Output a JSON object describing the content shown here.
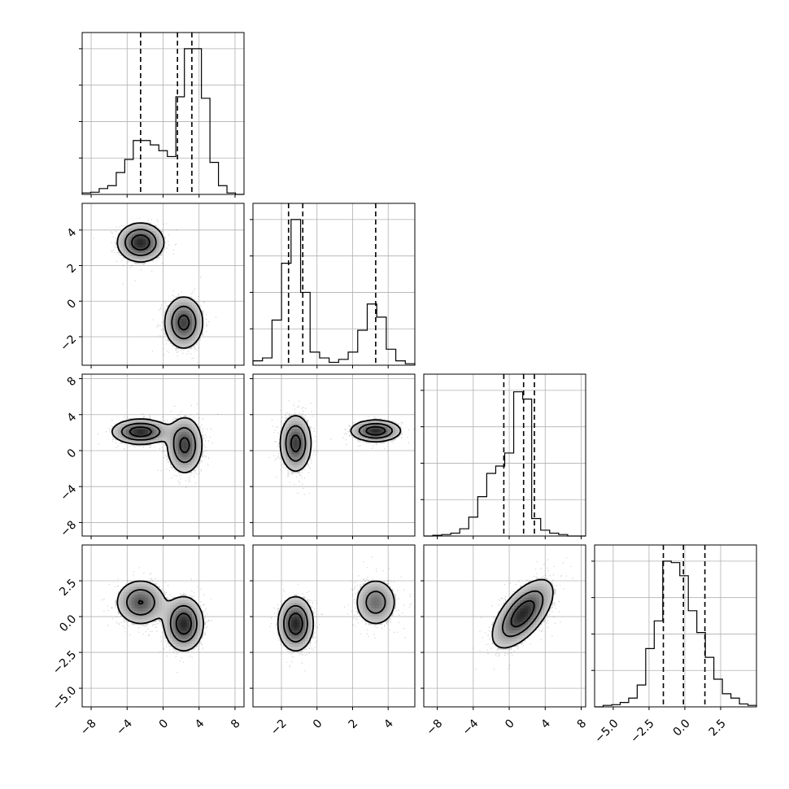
{
  "chart_data": {
    "type": "corner",
    "grid": true,
    "title": "",
    "quantile_lines": "dashed",
    "variables": [
      {
        "id": "v0",
        "range": [
          -9,
          9
        ],
        "ticks": [
          -8,
          -4,
          0,
          4,
          8
        ],
        "tick_labels": [
          "−8",
          "−4",
          "0",
          "4",
          "8"
        ],
        "quantiles": [
          -2.5,
          1.6,
          3.2
        ],
        "histogram": [
          0.01,
          0.015,
          0.04,
          0.06,
          0.15,
          0.24,
          0.37,
          0.37,
          0.34,
          0.3,
          0.26,
          0.67,
          1.0,
          1.0,
          0.66,
          0.22,
          0.06,
          0.01,
          0.0
        ]
      },
      {
        "id": "v1",
        "range": [
          -3.6,
          5.5
        ],
        "ticks": [
          -2,
          0,
          2,
          4
        ],
        "tick_labels": [
          "−2",
          "0",
          "2",
          "4"
        ],
        "quantiles": [
          -1.6,
          -0.8,
          3.3
        ],
        "histogram": [
          0.03,
          0.05,
          0.31,
          0.7,
          1.0,
          0.5,
          0.09,
          0.05,
          0.02,
          0.04,
          0.09,
          0.24,
          0.42,
          0.33,
          0.11,
          0.03,
          0.01
        ]
      },
      {
        "id": "v2",
        "range": [
          -9.5,
          8.5
        ],
        "ticks": [
          -8,
          -4,
          0,
          4,
          8
        ],
        "tick_labels": [
          "−8",
          "−4",
          "0",
          "4",
          "8"
        ],
        "quantiles": [
          -0.6,
          1.6,
          2.8
        ],
        "histogram": [
          0.0,
          0.005,
          0.01,
          0.02,
          0.05,
          0.13,
          0.27,
          0.43,
          0.48,
          0.57,
          0.99,
          0.94,
          0.12,
          0.04,
          0.02,
          0.01,
          0.0,
          0.0
        ]
      },
      {
        "id": "v3",
        "range": [
          -6.3,
          5.0
        ],
        "ticks": [
          -5.0,
          -2.5,
          0.0,
          2.5
        ],
        "tick_labels": [
          "−5.0",
          "−2.5",
          "0.0",
          "2.5"
        ],
        "quantiles": [
          -1.5,
          -0.1,
          1.4
        ],
        "histogram": [
          0.0,
          0.01,
          0.015,
          0.03,
          0.06,
          0.15,
          0.4,
          0.59,
          1.0,
          0.99,
          0.9,
          0.66,
          0.51,
          0.34,
          0.19,
          0.09,
          0.06,
          0.02,
          0.01
        ]
      }
    ],
    "pairs": [
      {
        "x": "v0",
        "y": "v1",
        "modes": [
          {
            "cx": -2.5,
            "cy": 3.3,
            "sx": 1.3,
            "sy": 0.55,
            "rho": 0.0,
            "w": 0.5
          },
          {
            "cx": 2.3,
            "cy": -1.2,
            "sx": 1.1,
            "sy": 0.75,
            "rho": 0.0,
            "w": 0.5
          }
        ]
      },
      {
        "x": "v0",
        "y": "v2",
        "modes": [
          {
            "cx": -2.5,
            "cy": 2.1,
            "sx": 1.6,
            "sy": 0.7,
            "rho": 0.0,
            "w": 0.45
          },
          {
            "cx": 2.4,
            "cy": 0.6,
            "sx": 1.0,
            "sy": 1.6,
            "rho": 0.0,
            "w": 0.55
          }
        ]
      },
      {
        "x": "v1",
        "y": "v2",
        "modes": [
          {
            "cx": -1.2,
            "cy": 0.8,
            "sx": 0.45,
            "sy": 1.6,
            "rho": 0.0,
            "w": 0.6
          },
          {
            "cx": 3.3,
            "cy": 2.2,
            "sx": 0.7,
            "sy": 0.6,
            "rho": 0.0,
            "w": 0.4
          }
        ]
      },
      {
        "x": "v0",
        "y": "v3",
        "modes": [
          {
            "cx": -2.5,
            "cy": 1.0,
            "sx": 1.4,
            "sy": 0.8,
            "rho": 0.0,
            "w": 0.45
          },
          {
            "cx": 2.3,
            "cy": -0.5,
            "sx": 1.1,
            "sy": 0.95,
            "rho": 0.0,
            "w": 0.55
          }
        ]
      },
      {
        "x": "v1",
        "y": "v3",
        "modes": [
          {
            "cx": -1.2,
            "cy": -0.5,
            "sx": 0.5,
            "sy": 0.95,
            "rho": 0.0,
            "w": 0.6
          },
          {
            "cx": 3.3,
            "cy": 1.0,
            "sx": 0.6,
            "sy": 0.85,
            "rho": 0.0,
            "w": 0.4
          }
        ]
      },
      {
        "x": "v2",
        "y": "v3",
        "modes": [
          {
            "cx": 1.5,
            "cy": 0.2,
            "sx": 1.7,
            "sy": 1.2,
            "rho": 0.62,
            "w": 1.0
          }
        ]
      }
    ]
  }
}
